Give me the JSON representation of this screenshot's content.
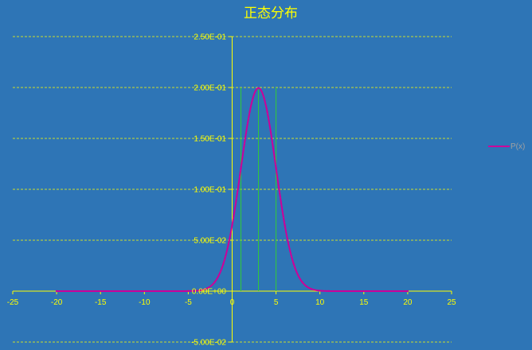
{
  "chart_data": {
    "type": "line",
    "title": "正态分布",
    "xlabel": "",
    "ylabel": "",
    "xlim": [
      -25,
      25
    ],
    "ylim": [
      -0.05,
      0.25
    ],
    "x_ticks": [
      -25,
      -20,
      -15,
      -10,
      -5,
      0,
      5,
      10,
      15,
      20,
      25
    ],
    "x_tick_labels": [
      "-25",
      "-20",
      "-15",
      "-10",
      "-5",
      "0",
      "5",
      "10",
      "15",
      "20",
      "25"
    ],
    "y_ticks": [
      -0.05,
      0,
      0.05,
      0.1,
      0.15,
      0.2,
      0.25
    ],
    "y_tick_labels": [
      "-5.00E-02",
      "0.00E+00",
      "5.00E-02",
      "1.00E-01",
      "1.50E-01",
      "2.00E-01",
      "2.50E-01"
    ],
    "grid": "horizontal dashed",
    "legend_position": "right",
    "series": [
      {
        "name": "P(x)",
        "color": "#cc0099",
        "x_range": [
          -20,
          20
        ],
        "mean": 3,
        "std": 2,
        "x": [
          -20,
          -5,
          -4,
          -3,
          -2,
          -1,
          0,
          1,
          2,
          3,
          4,
          5,
          6,
          7,
          8,
          9,
          10,
          11,
          20
        ],
        "values": [
          0,
          7e-05,
          0.00044,
          0.00222,
          0.00876,
          0.027,
          0.06476,
          0.12099,
          0.17603,
          0.19947,
          0.17603,
          0.12099,
          0.06476,
          0.027,
          0.00876,
          0.00222,
          0.00044,
          7e-05,
          0
        ]
      }
    ],
    "vertical_markers": {
      "color": "#33cc33",
      "x": [
        1,
        3,
        5
      ],
      "y_top": 0.2
    },
    "colors": {
      "background": "#2e75b6",
      "grid": "#ffff00",
      "axis": "#ffff00",
      "text": "#ffff00"
    }
  }
}
